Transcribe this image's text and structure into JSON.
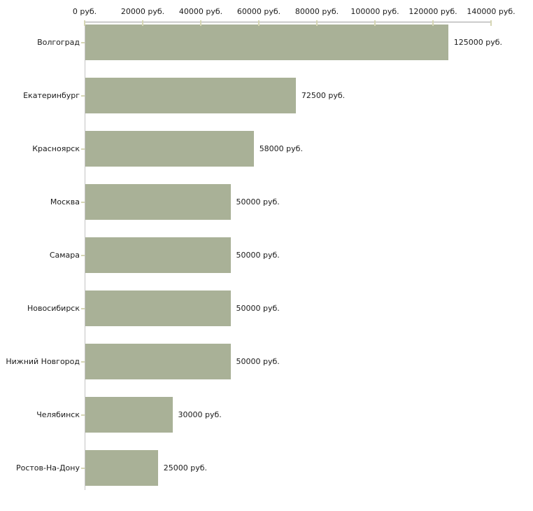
{
  "chart_data": {
    "type": "bar",
    "orientation": "horizontal",
    "title": "",
    "xlabel": "",
    "ylabel": "",
    "categories": [
      "Волгоград",
      "Екатеринбург",
      "Красноярск",
      "Москва",
      "Самара",
      "Новосибирск",
      "Нижний Новгород",
      "Челябинск",
      "Ростов-На-Дону"
    ],
    "values": [
      125000,
      72500,
      58000,
      50000,
      50000,
      50000,
      50000,
      30000,
      25000
    ],
    "value_labels": [
      "125000 руб.",
      "72500 руб.",
      "58000 руб.",
      "50000 руб.",
      "50000 руб.",
      "50000 руб.",
      "50000 руб.",
      "30000 руб.",
      "25000 руб."
    ],
    "x_ticks": [
      0,
      20000,
      40000,
      60000,
      80000,
      100000,
      120000,
      140000
    ],
    "x_tick_labels": [
      "0 руб.",
      "20000 руб.",
      "40000 руб.",
      "60000 руб.",
      "80000 руб.",
      "100000 руб.",
      "120000 руб.",
      "140000 руб."
    ],
    "xlim": [
      0,
      140000
    ],
    "grid": false,
    "legend_position": "none",
    "colors": {
      "bar": "#a9b197",
      "axis_line_horizontal": "#9f9f9f",
      "axis_line_vertical": "#c3c3c3",
      "tick_mark": "#d6d6b4",
      "text": "#1a1a1a",
      "background": "#ffffff"
    }
  }
}
